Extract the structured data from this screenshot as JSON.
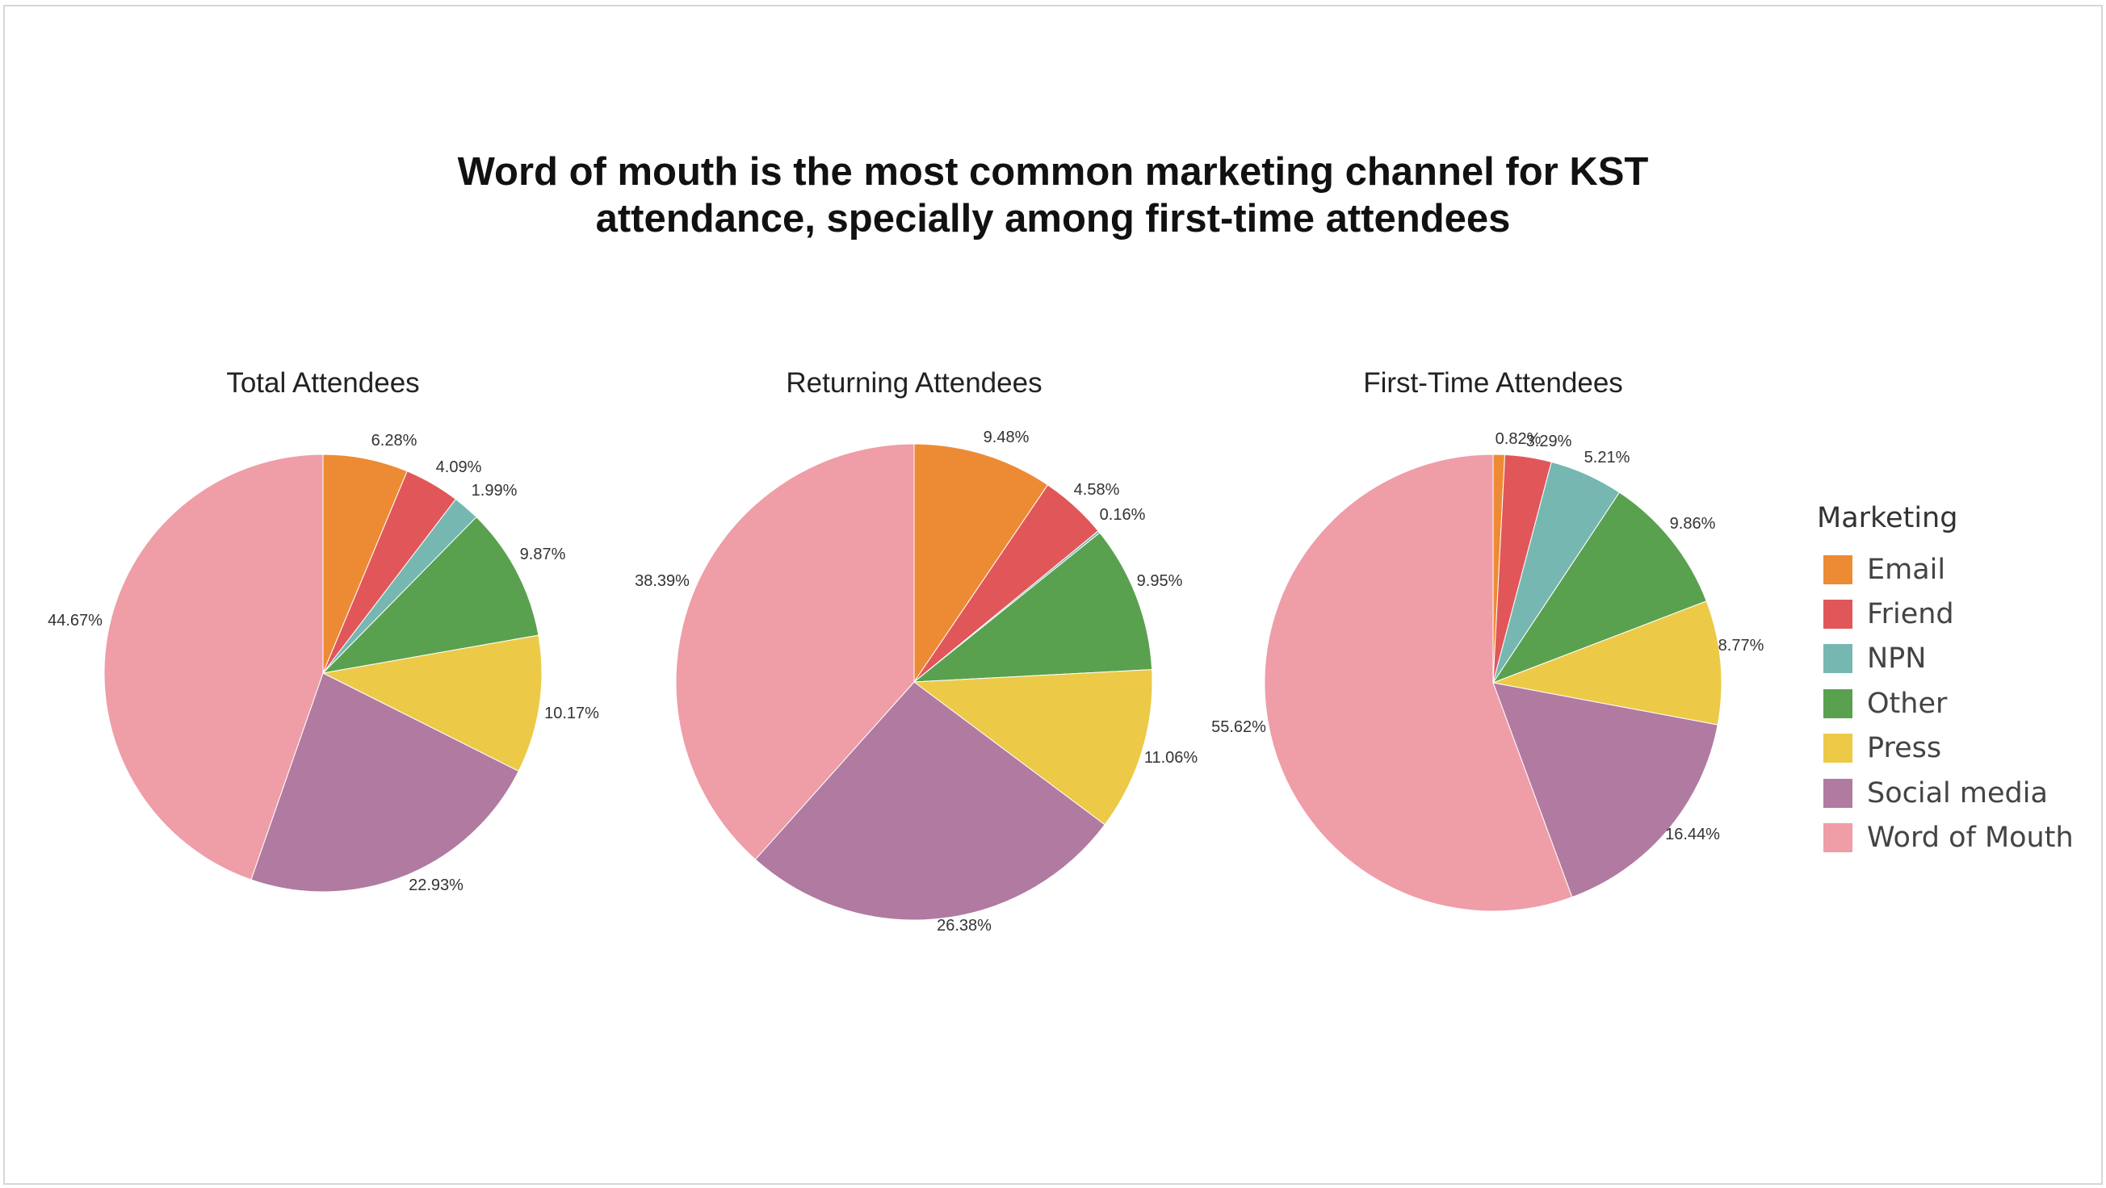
{
  "title_lines": [
    "Word of mouth is the most common marketing channel for KST",
    "attendance, specially among first-time attendees"
  ],
  "legend": {
    "title": "Marketing",
    "items": [
      {
        "label": "Email",
        "color": "#ED8B35"
      },
      {
        "label": "Friend",
        "color": "#E15759"
      },
      {
        "label": "NPN",
        "color": "#76B7B2"
      },
      {
        "label": "Other",
        "color": "#59A14F"
      },
      {
        "label": "Press",
        "color": "#EDC948"
      },
      {
        "label": "Social media",
        "color": "#B07AA1"
      },
      {
        "label": "Word of Mouth",
        "color": "#EF9DA7"
      }
    ]
  },
  "chart_data": [
    {
      "type": "pie",
      "title": "Total Attendees",
      "categories": [
        "Email",
        "Friend",
        "NPN",
        "Other",
        "Press",
        "Social media",
        "Word of Mouth"
      ],
      "values": [
        6.28,
        4.09,
        1.99,
        9.87,
        10.17,
        22.93,
        44.67
      ],
      "labels": [
        "6.28%",
        "4.09%",
        "1.99%",
        "9.87%",
        "10.17%",
        "22.93%",
        "44.67%"
      ]
    },
    {
      "type": "pie",
      "title": "Returning Attendees",
      "categories": [
        "Email",
        "Friend",
        "NPN",
        "Other",
        "Press",
        "Social media",
        "Word of Mouth"
      ],
      "values": [
        9.48,
        4.58,
        0.16,
        9.95,
        11.06,
        26.38,
        38.39
      ],
      "labels": [
        "9.48%",
        "4.58%",
        "0.16%",
        "9.95%",
        "11.06%",
        "26.38%",
        "38.39%"
      ]
    },
    {
      "type": "pie",
      "title": "First-Time Attendees",
      "categories": [
        "Email",
        "Friend",
        "NPN",
        "Other",
        "Press",
        "Social media",
        "Word of Mouth"
      ],
      "values": [
        0.82,
        3.29,
        5.21,
        9.86,
        8.77,
        16.44,
        55.62
      ],
      "labels": [
        "0.82%",
        "3.29%",
        "5.21%",
        "9.86%",
        "8.77%",
        "16.44%",
        "55.62%"
      ]
    }
  ]
}
